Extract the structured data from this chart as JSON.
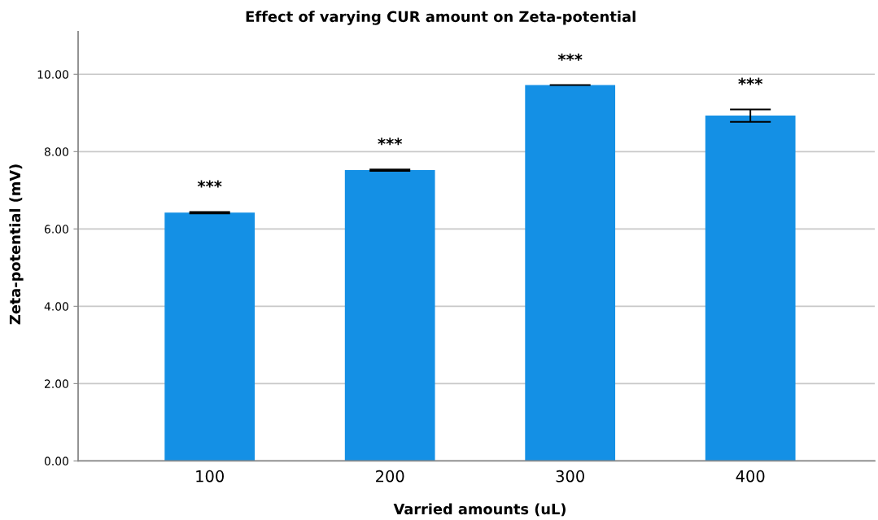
{
  "chart_data": {
    "type": "bar",
    "title": "Effect of varying CUR amount on Zeta-potential",
    "xlabel": "Varried amounts (uL)",
    "ylabel": "Zeta-potential (mV)",
    "categories": [
      "100",
      "200",
      "300",
      "400"
    ],
    "values": [
      6.42,
      7.52,
      9.72,
      8.93
    ],
    "errors": [
      0.02,
      0.02,
      0,
      0.16
    ],
    "color": "#1490e5",
    "ylim": [
      0,
      11.1
    ],
    "yticks": [
      {
        "value": 0,
        "label": "0.00"
      },
      {
        "value": 2,
        "label": "2.00"
      },
      {
        "value": 4,
        "label": "4.00"
      },
      {
        "value": 6,
        "label": "6.00"
      },
      {
        "value": 8,
        "label": "8.00"
      },
      {
        "value": 10,
        "label": "10.00"
      }
    ],
    "grid": "y",
    "legend": false,
    "annotations": [
      "***",
      "***",
      "***",
      "***"
    ]
  }
}
